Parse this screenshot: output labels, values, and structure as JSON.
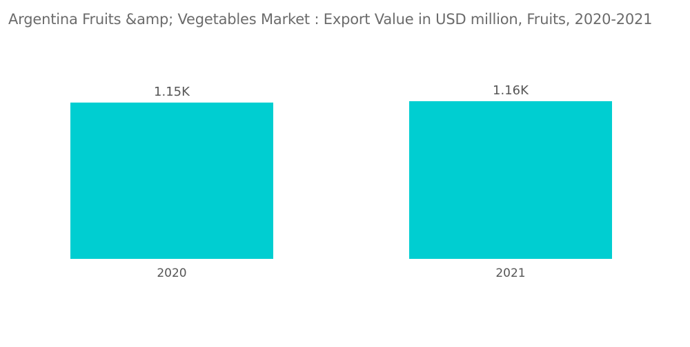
{
  "chart_data": {
    "type": "bar",
    "title": "Argentina Fruits &amp; Vegetables Market : Export Value in USD million, Fruits, 2020-2021",
    "categories": [
      "2020",
      "2021"
    ],
    "values": [
      1150,
      1160
    ],
    "data_labels": [
      "1.15K",
      "1.16K"
    ],
    "xlabel": "",
    "ylabel": "",
    "ylim": [
      0,
      1160
    ],
    "grid": false,
    "legend": "none",
    "bar_color": "#00CED1"
  }
}
